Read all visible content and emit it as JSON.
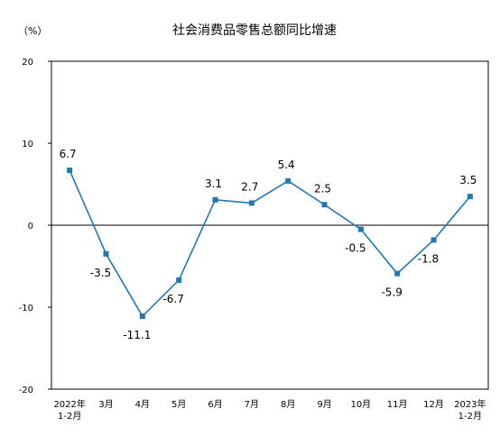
{
  "chart_data": {
    "type": "line",
    "title": "社会消费品零售总额同比增速",
    "ylabel": "（%）",
    "xlabel": "",
    "ylim": [
      -20,
      20
    ],
    "yticks": [
      -20,
      -10,
      0,
      10,
      20
    ],
    "grid": false,
    "categories": [
      [
        "2022年",
        "1-2月"
      ],
      [
        "3月"
      ],
      [
        "4月"
      ],
      [
        "5月"
      ],
      [
        "6月"
      ],
      [
        "7月"
      ],
      [
        "8月"
      ],
      [
        "9月"
      ],
      [
        "10月"
      ],
      [
        "11月"
      ],
      [
        "12月"
      ],
      [
        "2023年",
        "1-2月"
      ]
    ],
    "series": [
      {
        "values": [
          6.7,
          -3.5,
          -11.1,
          -6.7,
          3.1,
          2.7,
          5.4,
          2.5,
          -0.5,
          -5.9,
          -1.8,
          3.5
        ],
        "labels": [
          "6.7",
          "-3.5",
          "-11.1",
          "-6.7",
          "3.1",
          "2.7",
          "5.4",
          "2.5",
          "-0.5",
          "-5.9",
          "-1.8",
          "3.5"
        ],
        "label_side": [
          "above",
          "below",
          "below",
          "below",
          "above",
          "above",
          "above",
          "above",
          "below",
          "below",
          "below",
          "above"
        ],
        "color": "#1F78B4",
        "marker": "square"
      }
    ]
  }
}
